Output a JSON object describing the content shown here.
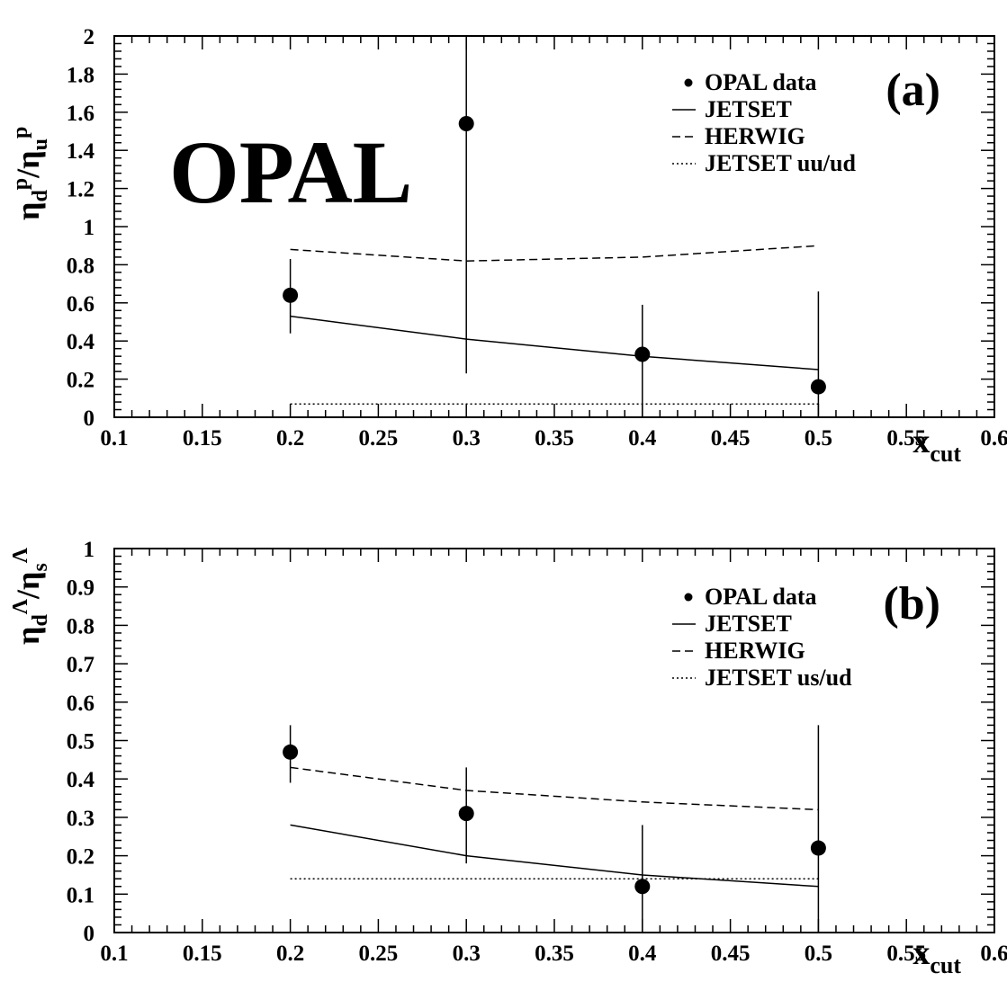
{
  "chart_data": [
    {
      "panel": "(a)",
      "type": "line",
      "watermark": "OPAL",
      "ylabel": {
        "base": "η",
        "sub1": "d",
        "sup1": "p",
        "mid": "/η",
        "sub2": "u",
        "sup2": "p"
      },
      "xlabel": {
        "base": "x",
        "sub": "cut"
      },
      "xlim": [
        0.1,
        0.6
      ],
      "ylim": [
        0,
        2
      ],
      "xticks": [
        0.1,
        0.15,
        0.2,
        0.25,
        0.3,
        0.35,
        0.4,
        0.45,
        0.5,
        0.55,
        0.6
      ],
      "xtick_labels": [
        "0.1",
        "0.15",
        "0.2",
        "0.25",
        "0.3",
        "0.35",
        "0.4",
        "0.45",
        "0.5",
        "0.55",
        "0.6"
      ],
      "yticks": [
        0,
        0.2,
        0.4,
        0.6,
        0.8,
        1,
        1.2,
        1.4,
        1.6,
        1.8,
        2
      ],
      "ytick_labels": [
        "0",
        "0.2",
        "0.4",
        "0.6",
        "0.8",
        "1",
        "1.2",
        "1.4",
        "1.6",
        "1.8",
        "2"
      ],
      "legend": [
        "OPAL data",
        "JETSET",
        "HERWIG",
        "JETSET uu/ud"
      ],
      "data_points": {
        "name": "OPAL data",
        "x": [
          0.2,
          0.3,
          0.4,
          0.5
        ],
        "y": [
          0.64,
          1.54,
          0.33,
          0.16
        ],
        "err_low": [
          0.44,
          0.23,
          0.0,
          0.0
        ],
        "err_high": [
          0.83,
          2.0,
          0.59,
          0.66
        ]
      },
      "series": [
        {
          "name": "JETSET",
          "style": "solid",
          "x": [
            0.2,
            0.3,
            0.4,
            0.5
          ],
          "y": [
            0.53,
            0.41,
            0.32,
            0.25
          ]
        },
        {
          "name": "HERWIG",
          "style": "dashed",
          "x": [
            0.2,
            0.3,
            0.4,
            0.5
          ],
          "y": [
            0.88,
            0.82,
            0.84,
            0.9
          ]
        },
        {
          "name": "JETSET uu/ud",
          "style": "dotted",
          "x": [
            0.2,
            0.3,
            0.4,
            0.5
          ],
          "y": [
            0.07,
            0.07,
            0.07,
            0.07
          ]
        }
      ]
    },
    {
      "panel": "(b)",
      "type": "line",
      "ylabel": {
        "base": "η",
        "sub1": "d",
        "sup1": "Λ",
        "mid": "/η",
        "sub2": "s",
        "sup2": "Λ"
      },
      "xlabel": {
        "base": "x",
        "sub": "cut"
      },
      "xlim": [
        0.1,
        0.6
      ],
      "ylim": [
        0,
        1
      ],
      "xticks": [
        0.1,
        0.15,
        0.2,
        0.25,
        0.3,
        0.35,
        0.4,
        0.45,
        0.5,
        0.55,
        0.6
      ],
      "xtick_labels": [
        "0.1",
        "0.15",
        "0.2",
        "0.25",
        "0.3",
        "0.35",
        "0.4",
        "0.45",
        "0.5",
        "0.55",
        "0.6"
      ],
      "yticks": [
        0,
        0.1,
        0.2,
        0.3,
        0.4,
        0.5,
        0.6,
        0.7,
        0.8,
        0.9,
        1
      ],
      "ytick_labels": [
        "0",
        "0.1",
        "0.2",
        "0.3",
        "0.4",
        "0.5",
        "0.6",
        "0.7",
        "0.8",
        "0.9",
        "1"
      ],
      "legend": [
        "OPAL data",
        "JETSET",
        "HERWIG",
        "JETSET us/ud"
      ],
      "data_points": {
        "name": "OPAL data",
        "x": [
          0.2,
          0.3,
          0.4,
          0.5
        ],
        "y": [
          0.47,
          0.31,
          0.12,
          0.22
        ],
        "err_low": [
          0.39,
          0.18,
          0.0,
          0.0
        ],
        "err_high": [
          0.54,
          0.43,
          0.28,
          0.54
        ]
      },
      "series": [
        {
          "name": "JETSET",
          "style": "solid",
          "x": [
            0.2,
            0.3,
            0.4,
            0.5
          ],
          "y": [
            0.28,
            0.2,
            0.15,
            0.12
          ]
        },
        {
          "name": "HERWIG",
          "style": "dashed",
          "x": [
            0.2,
            0.3,
            0.4,
            0.5
          ],
          "y": [
            0.43,
            0.37,
            0.34,
            0.32
          ]
        },
        {
          "name": "JETSET us/ud",
          "style": "dotted",
          "x": [
            0.2,
            0.3,
            0.4,
            0.5
          ],
          "y": [
            0.14,
            0.14,
            0.14,
            0.14
          ]
        }
      ]
    }
  ]
}
